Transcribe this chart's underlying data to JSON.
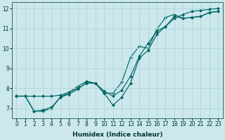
{
  "xlabel": "Humidex (Indice chaleur)",
  "ylabel": "",
  "xlim": [
    -0.5,
    23.5
  ],
  "ylim": [
    6.5,
    12.3
  ],
  "yticks": [
    7,
    8,
    9,
    10,
    11,
    12
  ],
  "xticks": [
    0,
    1,
    2,
    3,
    4,
    5,
    6,
    7,
    8,
    9,
    10,
    11,
    12,
    13,
    14,
    15,
    16,
    17,
    18,
    19,
    20,
    21,
    22,
    23
  ],
  "bg_color": "#cce8ec",
  "line_color": "#006666",
  "grid_color": "#b0d8dc",
  "series1_x": [
    0,
    1,
    2,
    3,
    4,
    5,
    6,
    7,
    8,
    9,
    10,
    11,
    12,
    13,
    14,
    15,
    16,
    17,
    18,
    19,
    20,
    21,
    22,
    23
  ],
  "series1_y": [
    7.6,
    7.6,
    6.85,
    6.85,
    7.0,
    7.55,
    7.8,
    8.1,
    8.35,
    8.25,
    7.75,
    7.75,
    8.3,
    9.55,
    10.1,
    10.0,
    10.95,
    11.55,
    11.7,
    11.5,
    11.55,
    11.6,
    11.8,
    11.85
  ],
  "series2_x": [
    0,
    1,
    2,
    3,
    4,
    5,
    6,
    7,
    8,
    9,
    10,
    11,
    12,
    13,
    14,
    15,
    16,
    17,
    18,
    19,
    20,
    21,
    22,
    23
  ],
  "series2_y": [
    7.6,
    7.6,
    7.6,
    7.6,
    7.6,
    7.65,
    7.8,
    8.0,
    8.25,
    8.25,
    7.85,
    7.6,
    7.9,
    8.6,
    9.6,
    10.25,
    10.85,
    11.1,
    11.5,
    11.7,
    11.85,
    11.9,
    11.95,
    12.0
  ],
  "series3_x": [
    0,
    1,
    2,
    3,
    4,
    5,
    6,
    7,
    8,
    9,
    10,
    11,
    12,
    13,
    14,
    15,
    16,
    17,
    18,
    19,
    20,
    21,
    22,
    23
  ],
  "series3_y": [
    7.6,
    7.6,
    6.85,
    6.9,
    7.05,
    7.55,
    7.7,
    7.95,
    8.3,
    8.25,
    7.75,
    7.15,
    7.55,
    8.25,
    9.5,
    9.9,
    10.7,
    11.1,
    11.6,
    11.5,
    11.55,
    11.6,
    11.8,
    11.85
  ]
}
